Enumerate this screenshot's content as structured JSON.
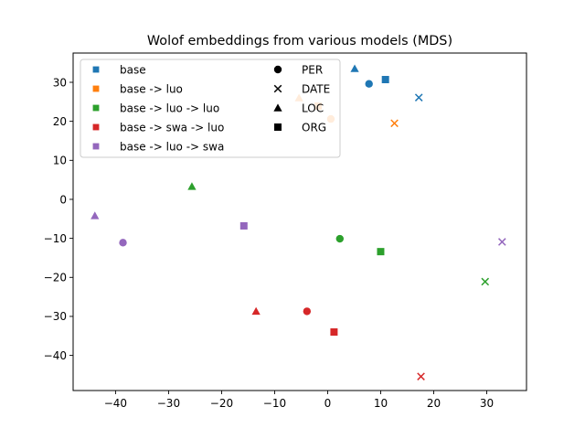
{
  "chart_data": {
    "type": "scatter",
    "title": "Wolof embeddings from various models (MDS)",
    "xlabel": "",
    "ylabel": "",
    "xlim": [
      -48,
      37.5
    ],
    "ylim": [
      -49,
      37.5
    ],
    "xticks": [
      -40,
      -30,
      -20,
      -10,
      0,
      10,
      20,
      30
    ],
    "yticks": [
      -40,
      -30,
      -20,
      -10,
      0,
      10,
      20,
      30
    ],
    "grid": false,
    "legend_placement": "top-left",
    "series": [
      {
        "name": "base",
        "color": "#1f77b4",
        "points": [
          {
            "entity": "PER",
            "x": 7.8,
            "y": 29.6
          },
          {
            "entity": "DATE",
            "x": 17.2,
            "y": 26.1
          },
          {
            "entity": "LOC",
            "x": 5.1,
            "y": 33.5
          },
          {
            "entity": "ORG",
            "x": 10.9,
            "y": 30.7
          }
        ]
      },
      {
        "name": "base -> luo",
        "color": "#ff7f0e",
        "points": [
          {
            "entity": "PER",
            "x": 0.6,
            "y": 20.6
          },
          {
            "entity": "DATE",
            "x": 12.6,
            "y": 19.5
          },
          {
            "entity": "LOC",
            "x": -5.4,
            "y": 26.0
          },
          {
            "entity": "ORG",
            "x": -1.8,
            "y": 23.9
          }
        ]
      },
      {
        "name": "base -> luo -> luo",
        "color": "#2ca02c",
        "points": [
          {
            "entity": "PER",
            "x": 2.3,
            "y": -10.1
          },
          {
            "entity": "DATE",
            "x": 29.7,
            "y": -21.1
          },
          {
            "entity": "LOC",
            "x": -25.6,
            "y": 3.3
          },
          {
            "entity": "ORG",
            "x": 10.0,
            "y": -13.4
          }
        ]
      },
      {
        "name": "base -> swa -> luo",
        "color": "#d62728",
        "points": [
          {
            "entity": "PER",
            "x": -3.9,
            "y": -28.7
          },
          {
            "entity": "DATE",
            "x": 17.6,
            "y": -45.4
          },
          {
            "entity": "LOC",
            "x": -13.5,
            "y": -28.7
          },
          {
            "entity": "ORG",
            "x": 1.2,
            "y": -34.0
          }
        ]
      },
      {
        "name": "base -> luo -> swa",
        "color": "#9467bd",
        "points": [
          {
            "entity": "PER",
            "x": -38.6,
            "y": -11.1
          },
          {
            "entity": "DATE",
            "x": 32.9,
            "y": -10.9
          },
          {
            "entity": "LOC",
            "x": -43.9,
            "y": -4.2
          },
          {
            "entity": "ORG",
            "x": -15.8,
            "y": -6.8
          }
        ]
      }
    ],
    "entity_legend": [
      {
        "name": "PER",
        "marker": "circle"
      },
      {
        "name": "DATE",
        "marker": "x"
      },
      {
        "name": "LOC",
        "marker": "triangle"
      },
      {
        "name": "ORG",
        "marker": "square"
      }
    ]
  }
}
